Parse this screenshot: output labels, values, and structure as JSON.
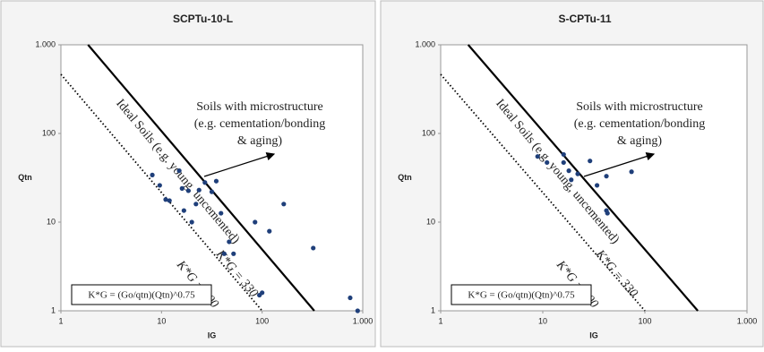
{
  "chart_data": [
    {
      "type": "scatter",
      "title": "SCPTu-10-L",
      "x_label": "IG",
      "y_label": "Qtn",
      "log_x": true,
      "log_y": true,
      "color": "#1f3f7a",
      "xlim": [
        1,
        1000
      ],
      "ylim": [
        1,
        1000
      ],
      "xticks": [
        1,
        10,
        100,
        {
          "value": 1000,
          "label": "1.000"
        }
      ],
      "yticks": [
        1,
        10,
        100,
        {
          "value": 1000,
          "label": "1.000"
        }
      ],
      "x": [
        8.1,
        9.6,
        11,
        12,
        15,
        16,
        18.5,
        16.7,
        20,
        23.6,
        22,
        27,
        31.6,
        35,
        39,
        47,
        42,
        52,
        85,
        94,
        100,
        118,
        164,
        322,
        750,
        890
      ],
      "values": [
        34,
        26,
        18,
        17.5,
        38,
        24,
        22.6,
        13.5,
        10,
        23,
        16,
        28,
        22,
        29,
        12.6,
        6,
        4.4,
        4.4,
        10,
        1.5,
        1.6,
        7.9,
        16,
        5.1,
        1.4,
        1.0
      ],
      "lines": [
        {
          "name": "K*G = 330",
          "style": "solid",
          "x": [
            1.86,
            330
          ],
          "y": [
            1000,
            1
          ]
        },
        {
          "name": "K*G = 100",
          "style": "dotted",
          "x": [
            1,
            100
          ],
          "y": [
            464,
            1
          ]
        }
      ],
      "annotations": [
        "Ideal Soils (e.g. young, uncemented)",
        "Soils with microstructure",
        "(e.g. cementation/bonding",
        "& aging)"
      ],
      "formula": "K*G = (Go/qtn)(Qtn)^0.75"
    },
    {
      "type": "scatter",
      "title": "S-CPTu-11",
      "x_label": "IG",
      "y_label": "Qtn",
      "log_x": true,
      "log_y": true,
      "color": "#1f3f7a",
      "xlim": [
        1,
        1000
      ],
      "ylim": [
        1,
        1000
      ],
      "xticks": [
        1,
        10,
        100,
        {
          "value": 1000,
          "label": "1.000"
        }
      ],
      "yticks": [
        1,
        10,
        100,
        {
          "value": 1000,
          "label": "1.000"
        }
      ],
      "x": [
        8.9,
        11,
        16,
        16,
        18,
        19,
        22,
        29,
        34,
        42,
        42,
        43,
        74
      ],
      "values": [
        55,
        47,
        58,
        47,
        38,
        30,
        35,
        49,
        26,
        33,
        13.5,
        12.6,
        37
      ],
      "lines": [
        {
          "name": "K*G = 330",
          "style": "solid",
          "x": [
            1.86,
            330
          ],
          "y": [
            1000,
            1
          ]
        },
        {
          "name": "K*G = 100",
          "style": "dotted",
          "x": [
            1,
            100
          ],
          "y": [
            464,
            1
          ]
        }
      ],
      "annotations": [
        "Ideal Soils (e.g. young, uncemented)",
        "Soils with microstructure",
        "(e.g. cementation/bonding",
        "& aging)"
      ],
      "formula": "K*G = (Go/qtn)(Qtn)^0.75"
    }
  ]
}
